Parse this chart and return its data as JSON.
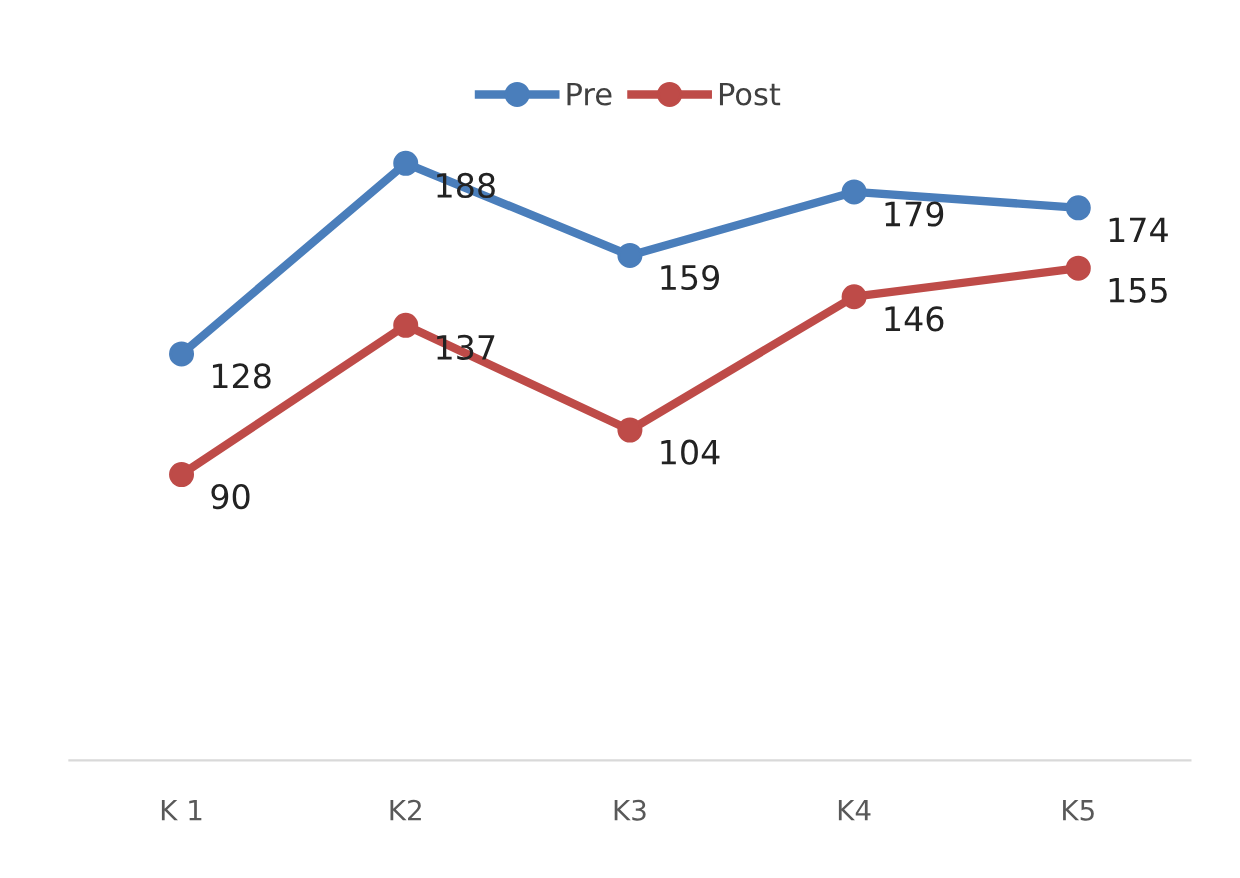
{
  "chart_data": {
    "type": "line",
    "categories": [
      "K 1",
      "K2",
      "K3",
      "K4",
      "K5"
    ],
    "series": [
      {
        "name": "Pre",
        "color": "#4a7ebb",
        "values": [
          128,
          188,
          159,
          179,
          174
        ]
      },
      {
        "name": "Post",
        "color": "#be4b48",
        "values": [
          90,
          137,
          104,
          146,
          155
        ]
      }
    ],
    "tick_labels": "x",
    "data_labels": true,
    "marker": "circle",
    "line_style": "solid",
    "grid": false,
    "legend": "top"
  }
}
